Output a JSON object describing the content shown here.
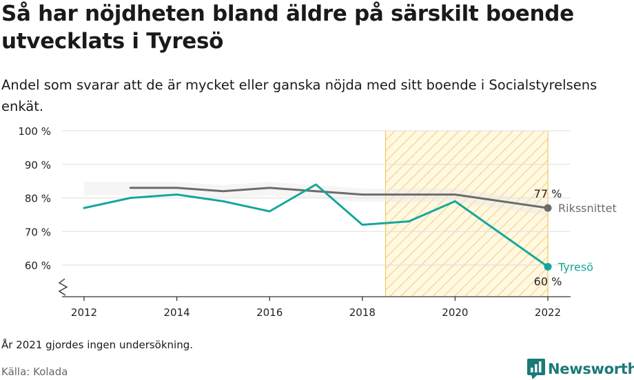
{
  "title": "Så har nöjdheten bland äldre på särskilt boende utvecklats i Tyresö",
  "subtitle": "Andel som svarar att de är mycket eller ganska nöjda med sitt boende i Socialstyrelsens enkät.",
  "note": "År 2021 gjordes ingen undersökning.",
  "source": "Källa: Kolada",
  "brand": "Newsworthy",
  "chart_data": {
    "type": "line",
    "x_ticks": [
      2012,
      2014,
      2016,
      2018,
      2020,
      2022
    ],
    "x_tick_labels": [
      "2012",
      "2014",
      "2016",
      "2018",
      "2020",
      "2022"
    ],
    "xlim": [
      2011.5,
      2022.5
    ],
    "ylim": [
      51,
      100
    ],
    "y_ticks": [
      60,
      70,
      80,
      90,
      100
    ],
    "y_tick_labels": [
      "60 %",
      "70 %",
      "80 %",
      "90 %",
      "100 %"
    ],
    "axis_break": true,
    "grid": true,
    "highlight_range": [
      2018.5,
      2022
    ],
    "series": [
      {
        "name": "Rikssnittet",
        "color": "#6b6b6b",
        "x": [
          2013,
          2014,
          2015,
          2016,
          2017,
          2018,
          2019,
          2020,
          2022
        ],
        "values": [
          83,
          83,
          82,
          83,
          82,
          81,
          81,
          81,
          77
        ],
        "end_value_label": "77 %"
      },
      {
        "name": "Tyresö",
        "color": "#14a79b",
        "x": [
          2012,
          2013,
          2014,
          2015,
          2016,
          2017,
          2018,
          2019,
          2020,
          2022
        ],
        "values": [
          77,
          80,
          81,
          79,
          76,
          84,
          72,
          73,
          79,
          59.5
        ],
        "end_value_label": "60 %"
      }
    ]
  }
}
